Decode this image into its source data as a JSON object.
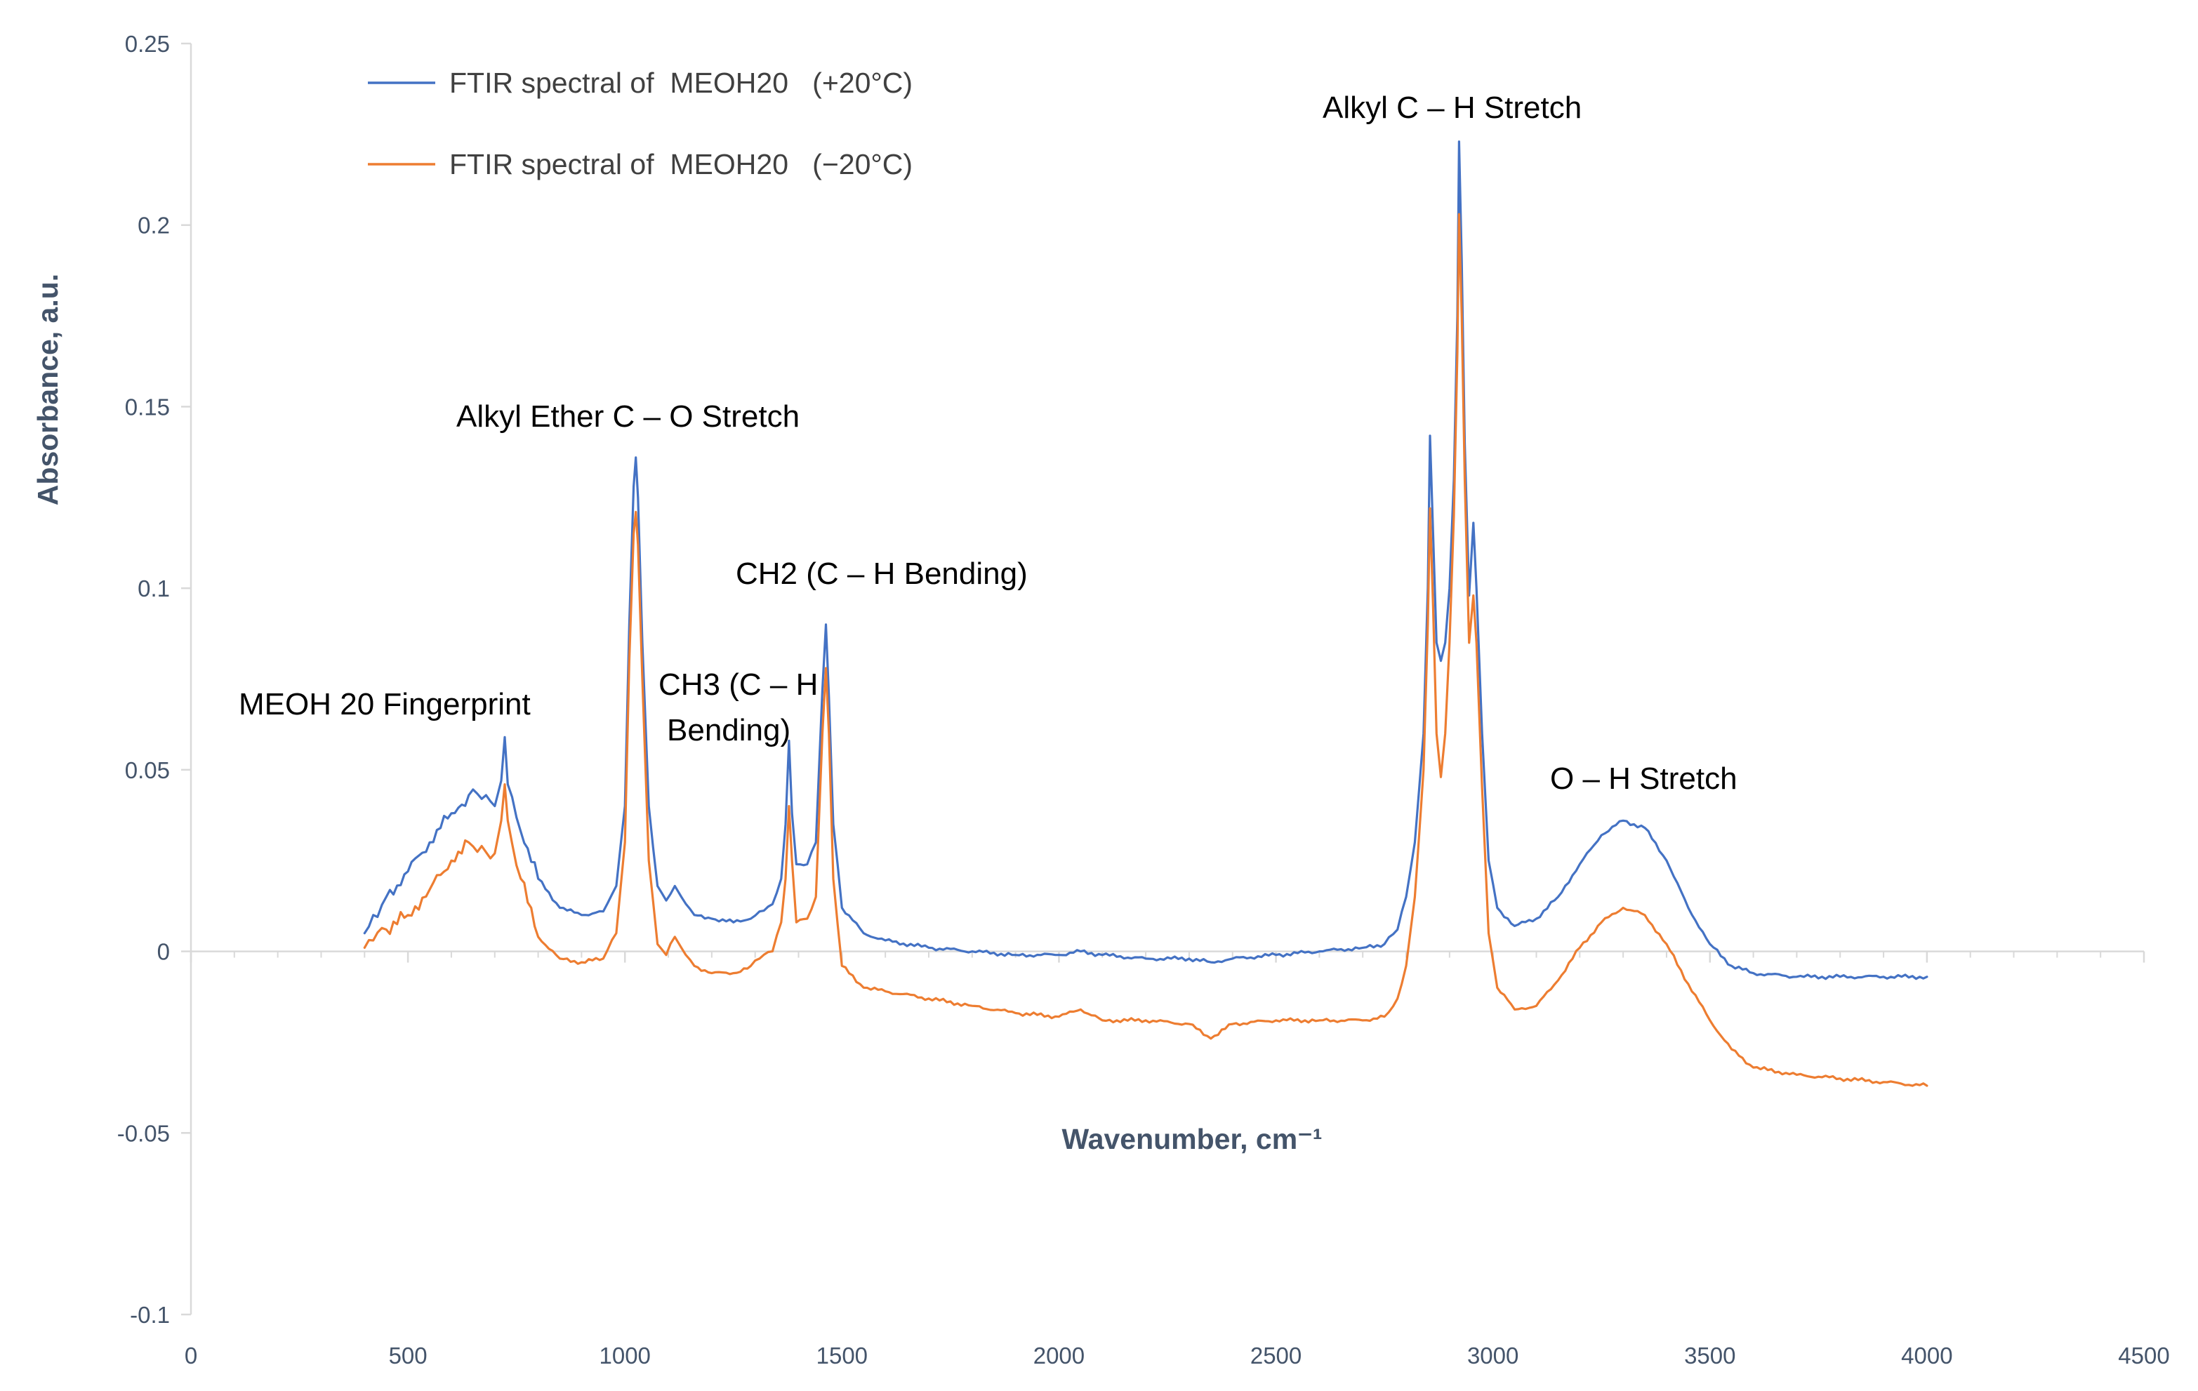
{
  "chart_data": {
    "type": "line",
    "title": "",
    "xlabel": "Wavenumber, cm⁻¹",
    "ylabel": "Absorbance, a.u.",
    "xlim": [
      0,
      4500
    ],
    "ylim": [
      -0.1,
      0.25
    ],
    "grid": false,
    "legend_position": "top-left",
    "x_ticks": [
      {
        "value": 0,
        "label": "0"
      },
      {
        "value": 500,
        "label": "500"
      },
      {
        "value": 1000,
        "label": "1000"
      },
      {
        "value": 1500,
        "label": "1500"
      },
      {
        "value": 2000,
        "label": "2000"
      },
      {
        "value": 2500,
        "label": "2500"
      },
      {
        "value": 3000,
        "label": "3000"
      },
      {
        "value": 3500,
        "label": "3500"
      },
      {
        "value": 4000,
        "label": "4000"
      },
      {
        "value": 4500,
        "label": "4500"
      }
    ],
    "y_ticks": [
      {
        "value": 0.25,
        "label": "0.25"
      },
      {
        "value": 0.2,
        "label": "0.2"
      },
      {
        "value": 0.15,
        "label": "0.15"
      },
      {
        "value": 0.1,
        "label": "0.1"
      },
      {
        "value": 0.05,
        "label": "0.05"
      },
      {
        "value": 0,
        "label": "0"
      },
      {
        "value": -0.05,
        "label": "-0.05"
      },
      {
        "value": -0.1,
        "label": "-0.1"
      }
    ],
    "series": [
      {
        "name": "FTIR spectral of  MEOH20   (+20°C)",
        "color": "#4472C4",
        "points": [
          [
            400,
            0.005
          ],
          [
            420,
            0.01
          ],
          [
            450,
            0.015
          ],
          [
            500,
            0.022
          ],
          [
            550,
            0.03
          ],
          [
            600,
            0.038
          ],
          [
            640,
            0.043
          ],
          [
            670,
            0.042
          ],
          [
            700,
            0.04
          ],
          [
            715,
            0.047
          ],
          [
            723,
            0.059
          ],
          [
            730,
            0.046
          ],
          [
            760,
            0.033
          ],
          [
            800,
            0.02
          ],
          [
            850,
            0.012
          ],
          [
            900,
            0.01
          ],
          [
            950,
            0.011
          ],
          [
            980,
            0.018
          ],
          [
            1000,
            0.04
          ],
          [
            1010,
            0.09
          ],
          [
            1020,
            0.128
          ],
          [
            1025,
            0.136
          ],
          [
            1030,
            0.125
          ],
          [
            1040,
            0.085
          ],
          [
            1055,
            0.04
          ],
          [
            1075,
            0.018
          ],
          [
            1095,
            0.014
          ],
          [
            1115,
            0.018
          ],
          [
            1130,
            0.015
          ],
          [
            1160,
            0.01
          ],
          [
            1200,
            0.009
          ],
          [
            1250,
            0.008
          ],
          [
            1290,
            0.009
          ],
          [
            1310,
            0.011
          ],
          [
            1340,
            0.013
          ],
          [
            1360,
            0.02
          ],
          [
            1370,
            0.035
          ],
          [
            1378,
            0.058
          ],
          [
            1385,
            0.038
          ],
          [
            1395,
            0.024
          ],
          [
            1420,
            0.024
          ],
          [
            1440,
            0.03
          ],
          [
            1455,
            0.072
          ],
          [
            1463,
            0.09
          ],
          [
            1470,
            0.07
          ],
          [
            1480,
            0.035
          ],
          [
            1500,
            0.012
          ],
          [
            1550,
            0.005
          ],
          [
            1600,
            0.003
          ],
          [
            1700,
            0.001
          ],
          [
            1800,
            0.0
          ],
          [
            1900,
            -0.001
          ],
          [
            2000,
            -0.001
          ],
          [
            2050,
            0.0
          ],
          [
            2100,
            -0.001
          ],
          [
            2200,
            -0.002
          ],
          [
            2300,
            -0.002
          ],
          [
            2350,
            -0.003
          ],
          [
            2400,
            -0.002
          ],
          [
            2500,
            -0.001
          ],
          [
            2600,
            0.0
          ],
          [
            2700,
            0.001
          ],
          [
            2750,
            0.002
          ],
          [
            2780,
            0.006
          ],
          [
            2800,
            0.015
          ],
          [
            2820,
            0.03
          ],
          [
            2840,
            0.06
          ],
          [
            2850,
            0.1
          ],
          [
            2855,
            0.142
          ],
          [
            2862,
            0.115
          ],
          [
            2870,
            0.085
          ],
          [
            2880,
            0.08
          ],
          [
            2890,
            0.085
          ],
          [
            2900,
            0.1
          ],
          [
            2910,
            0.13
          ],
          [
            2918,
            0.175
          ],
          [
            2922,
            0.223
          ],
          [
            2928,
            0.19
          ],
          [
            2935,
            0.14
          ],
          [
            2945,
            0.098
          ],
          [
            2955,
            0.118
          ],
          [
            2962,
            0.1
          ],
          [
            2975,
            0.06
          ],
          [
            2990,
            0.025
          ],
          [
            3010,
            0.012
          ],
          [
            3050,
            0.007
          ],
          [
            3100,
            0.009
          ],
          [
            3150,
            0.015
          ],
          [
            3200,
            0.024
          ],
          [
            3250,
            0.032
          ],
          [
            3300,
            0.036
          ],
          [
            3350,
            0.034
          ],
          [
            3400,
            0.025
          ],
          [
            3450,
            0.012
          ],
          [
            3500,
            0.002
          ],
          [
            3550,
            -0.004
          ],
          [
            3600,
            -0.006
          ],
          [
            3700,
            -0.007
          ],
          [
            3800,
            -0.007
          ],
          [
            3900,
            -0.007
          ],
          [
            4000,
            -0.007
          ]
        ]
      },
      {
        "name": "FTIR spectral of  MEOH20   (−20°C)",
        "color": "#ED7D31",
        "points": [
          [
            400,
            0.001
          ],
          [
            420,
            0.003
          ],
          [
            450,
            0.006
          ],
          [
            500,
            0.01
          ],
          [
            550,
            0.017
          ],
          [
            600,
            0.025
          ],
          [
            640,
            0.03
          ],
          [
            670,
            0.029
          ],
          [
            700,
            0.027
          ],
          [
            715,
            0.036
          ],
          [
            723,
            0.046
          ],
          [
            730,
            0.036
          ],
          [
            760,
            0.02
          ],
          [
            800,
            0.004
          ],
          [
            850,
            -0.002
          ],
          [
            900,
            -0.003
          ],
          [
            950,
            -0.002
          ],
          [
            980,
            0.005
          ],
          [
            1000,
            0.03
          ],
          [
            1010,
            0.08
          ],
          [
            1020,
            0.115
          ],
          [
            1025,
            0.121
          ],
          [
            1030,
            0.112
          ],
          [
            1040,
            0.075
          ],
          [
            1055,
            0.025
          ],
          [
            1075,
            0.002
          ],
          [
            1095,
            -0.001
          ],
          [
            1115,
            0.004
          ],
          [
            1130,
            0.001
          ],
          [
            1160,
            -0.004
          ],
          [
            1200,
            -0.006
          ],
          [
            1250,
            -0.006
          ],
          [
            1290,
            -0.004
          ],
          [
            1310,
            -0.002
          ],
          [
            1340,
            0.0
          ],
          [
            1360,
            0.008
          ],
          [
            1370,
            0.02
          ],
          [
            1378,
            0.04
          ],
          [
            1385,
            0.025
          ],
          [
            1395,
            0.008
          ],
          [
            1420,
            0.009
          ],
          [
            1440,
            0.015
          ],
          [
            1455,
            0.06
          ],
          [
            1463,
            0.078
          ],
          [
            1470,
            0.06
          ],
          [
            1480,
            0.02
          ],
          [
            1500,
            -0.004
          ],
          [
            1550,
            -0.01
          ],
          [
            1600,
            -0.011
          ],
          [
            1700,
            -0.013
          ],
          [
            1800,
            -0.015
          ],
          [
            1900,
            -0.017
          ],
          [
            2000,
            -0.018
          ],
          [
            2050,
            -0.016
          ],
          [
            2100,
            -0.019
          ],
          [
            2200,
            -0.019
          ],
          [
            2300,
            -0.02
          ],
          [
            2350,
            -0.024
          ],
          [
            2400,
            -0.02
          ],
          [
            2500,
            -0.019
          ],
          [
            2600,
            -0.019
          ],
          [
            2700,
            -0.019
          ],
          [
            2750,
            -0.018
          ],
          [
            2780,
            -0.013
          ],
          [
            2800,
            -0.004
          ],
          [
            2820,
            0.015
          ],
          [
            2840,
            0.05
          ],
          [
            2850,
            0.09
          ],
          [
            2855,
            0.122
          ],
          [
            2862,
            0.095
          ],
          [
            2870,
            0.06
          ],
          [
            2880,
            0.048
          ],
          [
            2890,
            0.06
          ],
          [
            2900,
            0.085
          ],
          [
            2910,
            0.12
          ],
          [
            2918,
            0.165
          ],
          [
            2922,
            0.203
          ],
          [
            2928,
            0.175
          ],
          [
            2935,
            0.13
          ],
          [
            2945,
            0.085
          ],
          [
            2955,
            0.098
          ],
          [
            2962,
            0.085
          ],
          [
            2975,
            0.045
          ],
          [
            2990,
            0.005
          ],
          [
            3010,
            -0.01
          ],
          [
            3050,
            -0.016
          ],
          [
            3100,
            -0.015
          ],
          [
            3150,
            -0.008
          ],
          [
            3200,
            0.001
          ],
          [
            3250,
            0.008
          ],
          [
            3300,
            0.012
          ],
          [
            3350,
            0.01
          ],
          [
            3400,
            0.002
          ],
          [
            3450,
            -0.009
          ],
          [
            3500,
            -0.019
          ],
          [
            3550,
            -0.027
          ],
          [
            3600,
            -0.032
          ],
          [
            3700,
            -0.034
          ],
          [
            3800,
            -0.035
          ],
          [
            3900,
            -0.036
          ],
          [
            4000,
            -0.037
          ]
        ]
      }
    ],
    "annotations": [
      {
        "id": "fingerprint",
        "lines": [
          "MEOH 20 Fingerprint"
        ]
      },
      {
        "id": "ether",
        "lines": [
          "Alkyl Ether C – O Stretch"
        ]
      },
      {
        "id": "ch3",
        "lines": [
          "CH3 (C – H",
          "Bending)"
        ]
      },
      {
        "id": "ch2",
        "lines": [
          "CH2 (C – H Bending)"
        ]
      },
      {
        "id": "alkyl-ch",
        "lines": [
          "Alkyl C – H Stretch"
        ]
      },
      {
        "id": "oh",
        "lines": [
          "O – H Stretch"
        ]
      }
    ]
  }
}
